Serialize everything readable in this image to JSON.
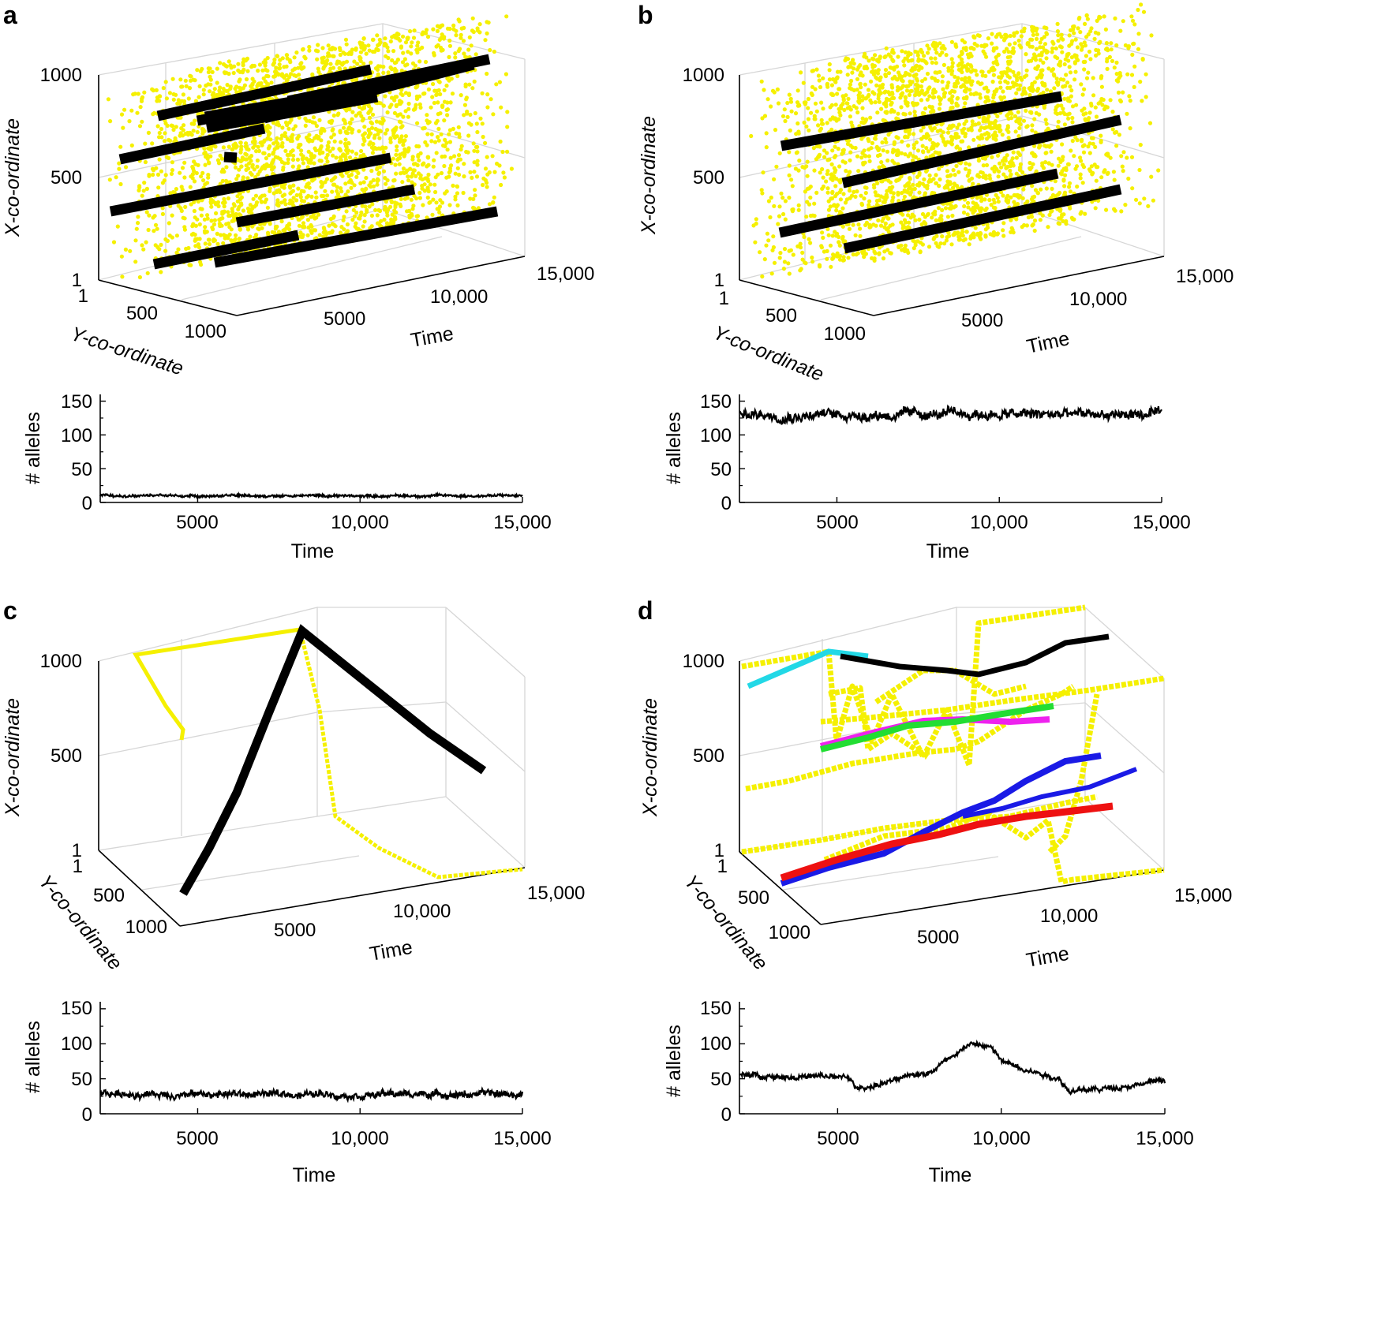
{
  "colors": {
    "scatter": "#f5f000",
    "track": "#000000",
    "cyan": "#22d8e6",
    "magenta": "#ee22ee",
    "green": "#22dd33",
    "blue": "#1a1ae6",
    "red": "#ee1111"
  },
  "chart_data": [
    {
      "panel": "a",
      "type": "scatter3d",
      "xlabel": "Time",
      "ylabel": "Y-co-ordinate",
      "zlabel": "X-co-ordinate",
      "time_ticks": [
        "5000",
        "10,000",
        "15,000"
      ],
      "y_ticks": [
        "1",
        "500",
        "1000"
      ],
      "x_ticks": [
        "1",
        "500",
        "1000"
      ],
      "time_range": [
        2000,
        15000
      ],
      "coord_range": [
        1,
        1000
      ],
      "scatter_points_approx": 3000,
      "lineage_tracks": 12
    },
    {
      "panel": "a",
      "type": "line",
      "xlabel": "Time",
      "ylabel": "# alleles",
      "x_ticks": [
        "5000",
        "10,000",
        "15,000"
      ],
      "y_ticks": [
        "0",
        "50",
        "100",
        "150"
      ],
      "xlim": [
        2000,
        15000
      ],
      "ylim": [
        0,
        160
      ],
      "mean": 10,
      "noise": 3
    },
    {
      "panel": "b",
      "type": "scatter3d",
      "xlabel": "Time",
      "ylabel": "Y-co-ordinate",
      "zlabel": "X-co-ordinate",
      "time_ticks": [
        "5000",
        "10,000",
        "15,000"
      ],
      "y_ticks": [
        "1",
        "500",
        "1000"
      ],
      "x_ticks": [
        "1",
        "500",
        "1000"
      ],
      "time_range": [
        2000,
        15000
      ],
      "coord_range": [
        1,
        1000
      ],
      "scatter_points_approx": 3000,
      "lineage_tracks": 4
    },
    {
      "panel": "b",
      "type": "line",
      "xlabel": "Time",
      "ylabel": "# alleles",
      "x_ticks": [
        "5000",
        "10,000",
        "15,000"
      ],
      "y_ticks": [
        "0",
        "50",
        "100",
        "150"
      ],
      "xlim": [
        2000,
        15000
      ],
      "ylim": [
        0,
        160
      ],
      "mean": 130,
      "noise": 12
    },
    {
      "panel": "c",
      "type": "line3d",
      "xlabel": "Time",
      "ylabel": "Y-co-ordinate",
      "zlabel": "X-co-ordinate",
      "time_ticks": [
        "5000",
        "10,000",
        "15,000"
      ],
      "y_ticks": [
        "1",
        "500",
        "1000"
      ],
      "x_ticks": [
        "1",
        "500",
        "1000"
      ],
      "time_range": [
        2000,
        15000
      ],
      "coord_range": [
        1,
        1000
      ],
      "series": [
        {
          "name": "black",
          "color": "track"
        },
        {
          "name": "yellow",
          "color": "scatter"
        }
      ]
    },
    {
      "panel": "c",
      "type": "line",
      "xlabel": "Time",
      "ylabel": "# alleles",
      "x_ticks": [
        "5000",
        "10,000",
        "15,000"
      ],
      "y_ticks": [
        "0",
        "50",
        "100",
        "150"
      ],
      "xlim": [
        2000,
        15000
      ],
      "ylim": [
        0,
        160
      ],
      "mean": 28,
      "noise": 8
    },
    {
      "panel": "d",
      "type": "line3d",
      "xlabel": "Time",
      "ylabel": "Y-co-ordinate",
      "zlabel": "X-co-ordinate",
      "time_ticks": [
        "5000",
        "10,000",
        "15,000"
      ],
      "y_ticks": [
        "1",
        "500",
        "1000"
      ],
      "x_ticks": [
        "1",
        "500",
        "1000"
      ],
      "time_range": [
        2000,
        15000
      ],
      "coord_range": [
        1,
        1000
      ],
      "series": [
        {
          "name": "yellow",
          "color": "scatter"
        },
        {
          "name": "black",
          "color": "track"
        },
        {
          "name": "cyan",
          "color": "cyan"
        },
        {
          "name": "magenta",
          "color": "magenta"
        },
        {
          "name": "green",
          "color": "green"
        },
        {
          "name": "blue",
          "color": "blue"
        },
        {
          "name": "red",
          "color": "red"
        }
      ]
    },
    {
      "panel": "d",
      "type": "line",
      "xlabel": "Time",
      "ylabel": "# alleles",
      "x_ticks": [
        "5000",
        "10,000",
        "15,000"
      ],
      "y_ticks": [
        "0",
        "50",
        "100",
        "150"
      ],
      "xlim": [
        2000,
        15000
      ],
      "ylim": [
        0,
        160
      ],
      "profile": [
        [
          2000,
          55
        ],
        [
          5300,
          52
        ],
        [
          5600,
          35
        ],
        [
          6500,
          45
        ],
        [
          7800,
          60
        ],
        [
          9000,
          100
        ],
        [
          9700,
          95
        ],
        [
          10000,
          75
        ],
        [
          11800,
          50
        ],
        [
          12100,
          32
        ],
        [
          13000,
          35
        ],
        [
          15000,
          48
        ]
      ],
      "noise": 6
    }
  ],
  "panels": {
    "a": {
      "letter": "a"
    },
    "b": {
      "letter": "b"
    },
    "c": {
      "letter": "c"
    },
    "d": {
      "letter": "d"
    }
  }
}
